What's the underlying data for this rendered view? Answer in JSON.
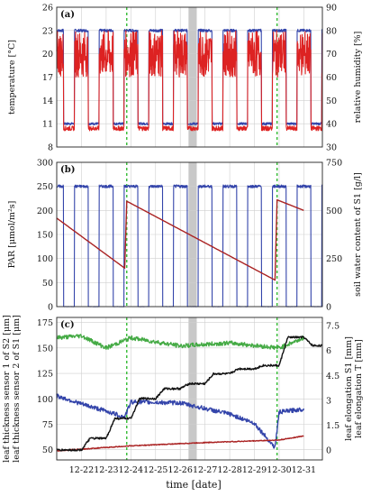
{
  "figure": {
    "xlabel": "time [date]",
    "x_tick_labels": [
      "12-22",
      "12-23",
      "12-24",
      "12-25",
      "12-26",
      "12-27",
      "12-28",
      "12-29",
      "12-30",
      "12-31"
    ],
    "events": {
      "dashed_green_days": [
        "12-24 08:00",
        "12-30 10:00"
      ],
      "shaded_gray_day": [
        "12-26 20:00",
        "12-27 04:00"
      ]
    }
  },
  "chart_data": [
    {
      "panel_label": "(a)",
      "type": "line",
      "x_axis": "time [date]",
      "ylabel_left": "temperature [°C]",
      "ylim_left": [
        8,
        26
      ],
      "yticks_left": [
        "8",
        "11",
        "14",
        "17",
        "20",
        "23",
        "26"
      ],
      "ylabel_right": "relative humidity [%]",
      "ylim_right": [
        30,
        90
      ],
      "yticks_right": [
        "30",
        "40",
        "50",
        "60",
        "70",
        "80",
        "90"
      ],
      "grid": true,
      "series": [
        {
          "name": "temperature",
          "axis": "left",
          "color": "#3344aa",
          "daily_pattern": {
            "day_value": 23,
            "night_value": 11
          }
        },
        {
          "name": "relative humidity",
          "axis": "right",
          "color": "#dd2222",
          "daily_pattern": {
            "day_range": [
              60,
              80
            ],
            "night_value": 38
          }
        }
      ]
    },
    {
      "panel_label": "(b)",
      "type": "line",
      "x_axis": "time [date]",
      "ylabel_left": "PAR [μmol/m²s]",
      "ylim_left": [
        0,
        300
      ],
      "yticks_left": [
        "0",
        "50",
        "100",
        "150",
        "200",
        "250",
        "300"
      ],
      "ylabel_right": "soil water content of S1 [g/l]",
      "ylim_right": [
        0,
        750
      ],
      "yticks_right": [
        "0",
        "250",
        "500",
        "750"
      ],
      "grid": true,
      "series": [
        {
          "name": "PAR",
          "axis": "left",
          "color": "#3344aa",
          "daily_pattern": {
            "day_value": 250,
            "night_value": 0
          }
        },
        {
          "name": "soil water content of S1",
          "axis": "right",
          "color": "#aa2222",
          "points": [
            {
              "x": "12-21 12:00",
              "y": 460
            },
            {
              "x": "12-24 06:00",
              "y": 200
            },
            {
              "x": "12-24 08:00",
              "y": 548
            },
            {
              "x": "12-30 08:00",
              "y": 138
            },
            {
              "x": "12-30 10:00",
              "y": 555
            },
            {
              "x": "12-31 12:00",
              "y": 500
            }
          ]
        }
      ]
    },
    {
      "panel_label": "(c)",
      "type": "line",
      "x_axis": "time [date]",
      "ylabel_left": "leaf thickness sensor 1 of S2 [μm]\nleaf thickness sensor 2 of S1 [μm]",
      "ylim_left": [
        40,
        180
      ],
      "yticks_left": [
        "50",
        "75",
        "100",
        "125",
        "150",
        "175"
      ],
      "ylabel_right": "leaf elongation S1 [mm]\nleaf elongation T [mm]",
      "ylim_right": [
        -0.6,
        8
      ],
      "yticks_right": [
        "0",
        "1.5",
        "3",
        "4.5",
        "6",
        "7.5"
      ],
      "grid": true,
      "series": [
        {
          "name": "leaf thickness sensor 1 of S2",
          "axis": "left",
          "color": "#44aa44",
          "points": [
            {
              "x": "12-21 12:00",
              "y": 160
            },
            {
              "x": "12-22 12:00",
              "y": 162
            },
            {
              "x": "12-23 12:00",
              "y": 150
            },
            {
              "x": "12-24 12:00",
              "y": 160
            },
            {
              "x": "12-26 12:00",
              "y": 152
            },
            {
              "x": "12-28 12:00",
              "y": 155
            },
            {
              "x": "12-30 12:00",
              "y": 150
            },
            {
              "x": "12-31 12:00",
              "y": 160
            }
          ]
        },
        {
          "name": "leaf thickness sensor 2 of S1",
          "axis": "left",
          "color": "#3344aa",
          "points": [
            {
              "x": "12-21 12:00",
              "y": 103
            },
            {
              "x": "12-22 12:00",
              "y": 95
            },
            {
              "x": "12-23 12:00",
              "y": 88
            },
            {
              "x": "12-24 06:00",
              "y": 82
            },
            {
              "x": "12-24 12:00",
              "y": 97
            },
            {
              "x": "12-26 12:00",
              "y": 96
            },
            {
              "x": "12-28 12:00",
              "y": 85
            },
            {
              "x": "12-29 12:00",
              "y": 76
            },
            {
              "x": "12-30 08:00",
              "y": 52
            },
            {
              "x": "12-30 12:00",
              "y": 87
            },
            {
              "x": "12-31 12:00",
              "y": 90
            }
          ]
        },
        {
          "name": "leaf elongation S1",
          "axis": "right",
          "color": "#aa2222",
          "points": [
            {
              "x": "12-21 12:00",
              "y": -0.05
            },
            {
              "x": "12-24 12:00",
              "y": 0.25
            },
            {
              "x": "12-27 12:00",
              "y": 0.45
            },
            {
              "x": "12-30 12:00",
              "y": 0.6
            },
            {
              "x": "12-31 12:00",
              "y": 0.85
            }
          ]
        },
        {
          "name": "leaf elongation T",
          "axis": "right",
          "color": "#111111",
          "step_levels": [
            {
              "x": "12-21 12:00",
              "y": 0.0
            },
            {
              "x": "12-22 12:00",
              "y": 0.7
            },
            {
              "x": "12-23 12:00",
              "y": 1.9
            },
            {
              "x": "12-24 12:00",
              "y": 3.1
            },
            {
              "x": "12-25 12:00",
              "y": 3.7
            },
            {
              "x": "12-26 12:00",
              "y": 4.0
            },
            {
              "x": "12-27 12:00",
              "y": 4.6
            },
            {
              "x": "12-28 12:00",
              "y": 4.9
            },
            {
              "x": "12-29 12:00",
              "y": 5.1
            },
            {
              "x": "12-30 12:00",
              "y": 6.8
            },
            {
              "x": "12-31 12:00",
              "y": 6.3
            }
          ]
        }
      ]
    }
  ]
}
